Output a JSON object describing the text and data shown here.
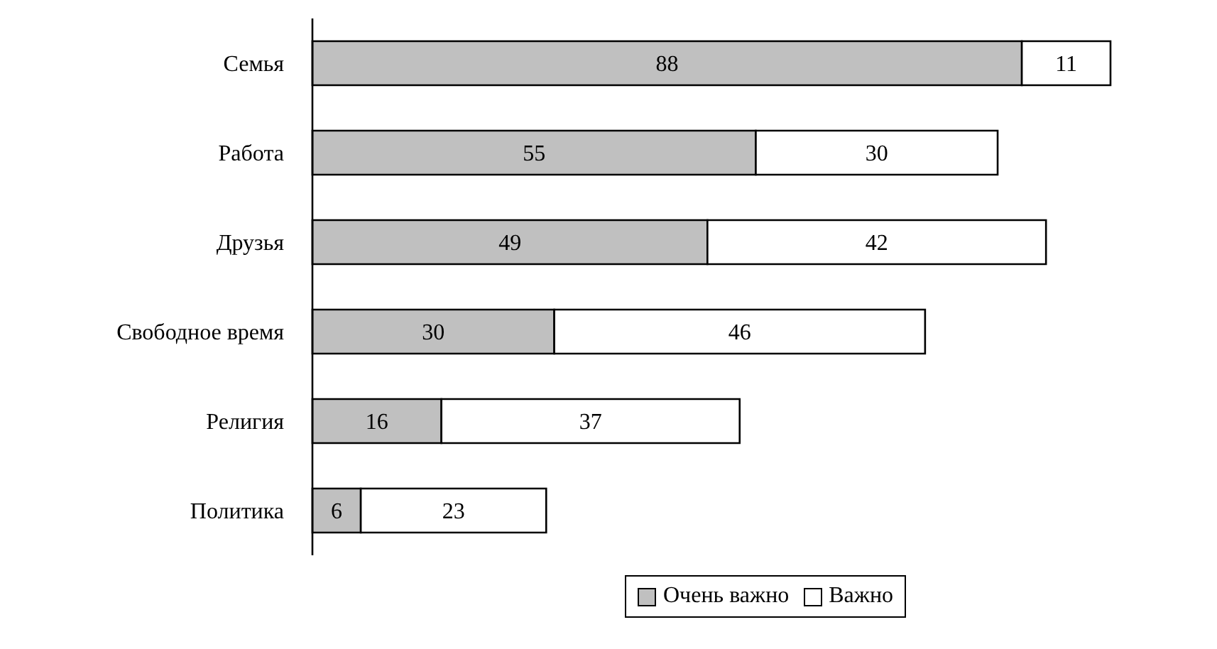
{
  "chart_data": {
    "type": "bar",
    "orientation": "horizontal",
    "stacked": true,
    "data_labels": true,
    "legend": "bottom right",
    "grid": false,
    "categories": [
      "Семья",
      "Работа",
      "Друзья",
      "Свободное время",
      "Религия",
      "Политика"
    ],
    "series": [
      {
        "name": "Очень важно",
        "color": "#c0c0c0",
        "values": [
          88,
          55,
          49,
          30,
          16,
          6
        ]
      },
      {
        "name": "Важно",
        "color": "#ffffff",
        "values": [
          11,
          30,
          42,
          46,
          37,
          23
        ]
      }
    ]
  }
}
